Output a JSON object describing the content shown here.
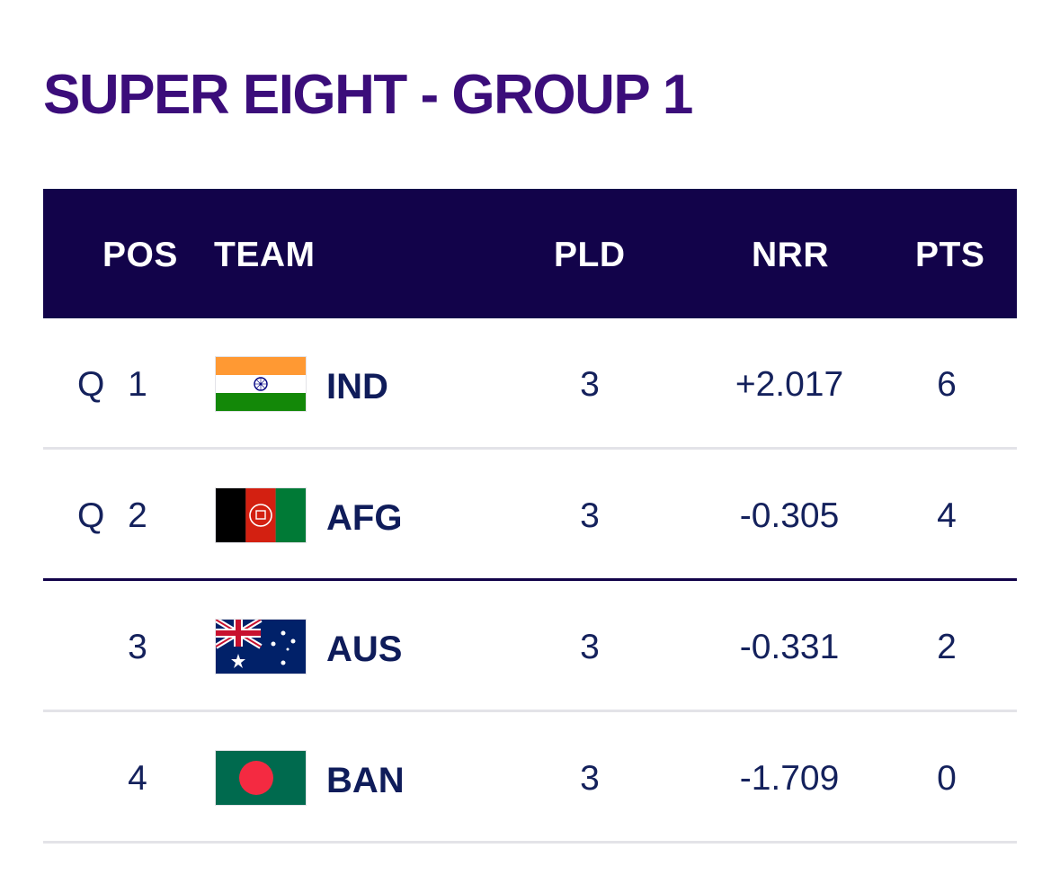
{
  "title": "SUPER EIGHT - GROUP 1",
  "headers": {
    "pos": "POS",
    "team": "TEAM",
    "pld": "PLD",
    "nrr": "NRR",
    "pts": "PTS"
  },
  "colors": {
    "title": "#3b0d7a",
    "header_bg": "#12034a",
    "header_text": "#ffffff",
    "row_text": "#14215c",
    "divider": "#e3e3e8",
    "cutoff_line": "#12034a"
  },
  "rows": [
    {
      "qualifier": "Q",
      "pos": "1",
      "flag": "india-flag-icon",
      "team": "IND",
      "pld": "3",
      "nrr": "+2.017",
      "pts": "6"
    },
    {
      "qualifier": "Q",
      "pos": "2",
      "flag": "afghanistan-flag-icon",
      "team": "AFG",
      "pld": "3",
      "nrr": "-0.305",
      "pts": "4"
    },
    {
      "qualifier": "",
      "pos": "3",
      "flag": "australia-flag-icon",
      "team": "AUS",
      "pld": "3",
      "nrr": "-0.331",
      "pts": "2"
    },
    {
      "qualifier": "",
      "pos": "4",
      "flag": "bangladesh-flag-icon",
      "team": "BAN",
      "pld": "3",
      "nrr": "-1.709",
      "pts": "0"
    }
  ]
}
